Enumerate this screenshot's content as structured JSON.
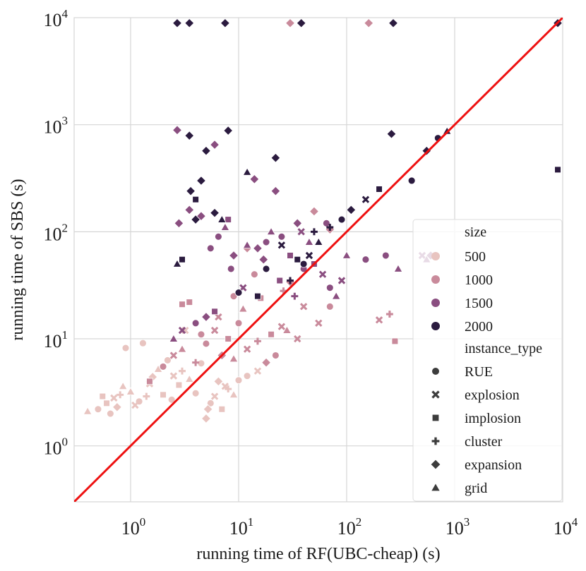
{
  "chart_data": {
    "type": "scatter",
    "xlabel": "running time of RF(UBC-cheap) (s)",
    "ylabel": "running time of SBS (s)",
    "xscale": "log",
    "yscale": "log",
    "xlim": [
      0.3,
      10000
    ],
    "ylim": [
      0.3,
      10000
    ],
    "grid": true,
    "x_ticks": [
      {
        "value": 1,
        "base": "10",
        "exp": "0"
      },
      {
        "value": 10,
        "base": "10",
        "exp": "1"
      },
      {
        "value": 100,
        "base": "10",
        "exp": "2"
      },
      {
        "value": 1000,
        "base": "10",
        "exp": "3"
      },
      {
        "value": 10000,
        "base": "10",
        "exp": "4"
      }
    ],
    "y_ticks": [
      {
        "value": 1,
        "base": "10",
        "exp": "0"
      },
      {
        "value": 10,
        "base": "10",
        "exp": "1"
      },
      {
        "value": 100,
        "base": "10",
        "exp": "2"
      },
      {
        "value": 1000,
        "base": "10",
        "exp": "3"
      },
      {
        "value": 10000,
        "base": "10",
        "exp": "4"
      }
    ],
    "reference_line": {
      "x": [
        0.3,
        10000
      ],
      "y": [
        0.3,
        10000
      ],
      "color": "#ee1111"
    },
    "legend": {
      "placement": "lower-right",
      "size_title": "size",
      "sizes": [
        {
          "label": "500",
          "color": "#e8c4c0"
        },
        {
          "label": "1000",
          "color": "#c98a9b"
        },
        {
          "label": "1500",
          "color": "#8a4e80"
        },
        {
          "label": "2000",
          "color": "#2b1b3f"
        }
      ],
      "type_title": "instance_type",
      "types": [
        {
          "label": "RUE",
          "marker": "circle"
        },
        {
          "label": "explosion",
          "marker": "x"
        },
        {
          "label": "implosion",
          "marker": "square"
        },
        {
          "label": "cluster",
          "marker": "plus"
        },
        {
          "label": "expansion",
          "marker": "diamond"
        },
        {
          "label": "grid",
          "marker": "triangle"
        }
      ],
      "marker_color": "#3c3c3c"
    },
    "series": [
      {
        "name": "500",
        "points": [
          [
            0.4,
            2.1,
            "triangle"
          ],
          [
            0.5,
            2.2,
            "circle"
          ],
          [
            0.6,
            2.5,
            "square"
          ],
          [
            0.7,
            2.8,
            "x"
          ],
          [
            0.8,
            3.0,
            "plus"
          ],
          [
            0.9,
            8.2,
            "circle"
          ],
          [
            1.0,
            3.2,
            "triangle"
          ],
          [
            0.75,
            2.3,
            "diamond"
          ],
          [
            1.2,
            2.6,
            "circle"
          ],
          [
            1.3,
            9.1,
            "circle"
          ],
          [
            1.5,
            3.8,
            "x"
          ],
          [
            1.8,
            5.2,
            "triangle"
          ],
          [
            2.0,
            3.0,
            "square"
          ],
          [
            2.2,
            6.3,
            "circle"
          ],
          [
            2.5,
            4.5,
            "x"
          ],
          [
            3.0,
            5.0,
            "plus"
          ],
          [
            3.5,
            4.2,
            "triangle"
          ],
          [
            4.0,
            3.1,
            "circle"
          ],
          [
            5.0,
            1.8,
            "diamond"
          ],
          [
            5.5,
            2.5,
            "circle"
          ],
          [
            6.0,
            2.9,
            "x"
          ],
          [
            7.0,
            2.2,
            "square"
          ],
          [
            8.0,
            3.4,
            "plus"
          ],
          [
            9.0,
            3.0,
            "triangle"
          ],
          [
            10.0,
            4.1,
            "circle"
          ],
          [
            0.55,
            2.9,
            "square"
          ],
          [
            0.65,
            2.0,
            "circle"
          ],
          [
            1.1,
            2.4,
            "x"
          ],
          [
            1.6,
            4.4,
            "diamond"
          ],
          [
            2.8,
            3.7,
            "square"
          ],
          [
            4.5,
            5.9,
            "circle"
          ],
          [
            6.5,
            4.0,
            "diamond"
          ],
          [
            12,
            4.5,
            "circle"
          ],
          [
            15,
            5.0,
            "x"
          ],
          [
            3.2,
            12.0,
            "x"
          ],
          [
            5.2,
            2.2,
            "diamond"
          ],
          [
            7.5,
            3.6,
            "x"
          ],
          [
            1.4,
            2.9,
            "plus"
          ],
          [
            2.4,
            2.7,
            "circle"
          ],
          [
            0.85,
            3.6,
            "triangle"
          ]
        ]
      },
      {
        "name": "1000",
        "points": [
          [
            1.5,
            4.0,
            "square"
          ],
          [
            2.0,
            5.5,
            "circle"
          ],
          [
            2.5,
            7.0,
            "x"
          ],
          [
            3.0,
            8.0,
            "triangle"
          ],
          [
            3.5,
            22,
            "square"
          ],
          [
            4.0,
            6.0,
            "plus"
          ],
          [
            5.0,
            9.0,
            "circle"
          ],
          [
            6.0,
            12,
            "x"
          ],
          [
            7.0,
            7.0,
            "diamond"
          ],
          [
            8.0,
            10,
            "square"
          ],
          [
            9.0,
            6.5,
            "triangle"
          ],
          [
            10,
            14,
            "circle"
          ],
          [
            12,
            8.0,
            "x"
          ],
          [
            15,
            9.5,
            "plus"
          ],
          [
            18,
            6.0,
            "diamond"
          ],
          [
            20,
            11,
            "square"
          ],
          [
            22,
            7.0,
            "circle"
          ],
          [
            25,
            13,
            "x"
          ],
          [
            28,
            12,
            "triangle"
          ],
          [
            30,
            8890,
            "diamond"
          ],
          [
            160,
            8890,
            "diamond"
          ],
          [
            30,
            34,
            "diamond"
          ],
          [
            40,
            20,
            "x"
          ],
          [
            55,
            14,
            "x"
          ],
          [
            70,
            20,
            "circle"
          ],
          [
            50,
            155,
            "diamond"
          ],
          [
            70,
            105,
            "diamond"
          ],
          [
            200,
            15,
            "x"
          ],
          [
            250,
            17,
            "plus"
          ],
          [
            280,
            9.5,
            "square"
          ],
          [
            3.0,
            21,
            "square"
          ],
          [
            12,
            70,
            "diamond"
          ],
          [
            9,
            25,
            "circle"
          ],
          [
            14,
            40,
            "circle"
          ],
          [
            35,
            10,
            "x"
          ],
          [
            4.5,
            11,
            "circle"
          ],
          [
            6.5,
            16,
            "x"
          ],
          [
            11,
            19,
            "triangle"
          ],
          [
            16,
            24,
            "square"
          ],
          [
            26,
            28,
            "plus"
          ]
        ]
      },
      {
        "name": "1500",
        "points": [
          [
            2.5,
            10,
            "triangle"
          ],
          [
            3.0,
            12,
            "x"
          ],
          [
            4.0,
            14,
            "circle"
          ],
          [
            5.0,
            16,
            "diamond"
          ],
          [
            6.0,
            18,
            "square"
          ],
          [
            2.8,
            120,
            "diamond"
          ],
          [
            3.5,
            160,
            "diamond"
          ],
          [
            4.5,
            140,
            "diamond"
          ],
          [
            5.5,
            70,
            "circle"
          ],
          [
            6.5,
            90,
            "circle"
          ],
          [
            7.5,
            110,
            "triangle"
          ],
          [
            8.0,
            130,
            "square"
          ],
          [
            9.0,
            60,
            "diamond"
          ],
          [
            12,
            75,
            "triangle"
          ],
          [
            15,
            70,
            "diamond"
          ],
          [
            18,
            80,
            "circle"
          ],
          [
            20,
            100,
            "triangle"
          ],
          [
            22,
            240,
            "diamond"
          ],
          [
            25,
            90,
            "circle"
          ],
          [
            30,
            60,
            "square"
          ],
          [
            35,
            120,
            "diamond"
          ],
          [
            40,
            45,
            "circle"
          ],
          [
            45,
            80,
            "triangle"
          ],
          [
            50,
            50,
            "square"
          ],
          [
            60,
            40,
            "x"
          ],
          [
            70,
            30,
            "circle"
          ],
          [
            80,
            25,
            "triangle"
          ],
          [
            90,
            35,
            "x"
          ],
          [
            100,
            60,
            "triangle"
          ],
          [
            150,
            55,
            "circle"
          ],
          [
            230,
            60,
            "circle"
          ],
          [
            300,
            45,
            "triangle"
          ],
          [
            500,
            60,
            "x"
          ],
          [
            550,
            55,
            "triangle"
          ],
          [
            600,
            60,
            "diamond"
          ],
          [
            2.7,
            890,
            "diamond"
          ],
          [
            6.0,
            650,
            "diamond"
          ],
          [
            14,
            310,
            "diamond"
          ],
          [
            38,
            100,
            "x"
          ],
          [
            65,
            120,
            "circle"
          ],
          [
            8.5,
            45,
            "circle"
          ],
          [
            11,
            30,
            "x"
          ],
          [
            17,
            55,
            "diamond"
          ],
          [
            24,
            35,
            "square"
          ],
          [
            33,
            25,
            "plus"
          ]
        ]
      },
      {
        "name": "2000",
        "points": [
          [
            2.7,
            8890,
            "diamond"
          ],
          [
            3.5,
            8890,
            "diamond"
          ],
          [
            7.5,
            8890,
            "diamond"
          ],
          [
            38,
            8890,
            "diamond"
          ],
          [
            270,
            8890,
            "diamond"
          ],
          [
            2.7,
            50,
            "triangle"
          ],
          [
            3.0,
            55,
            "square"
          ],
          [
            3.5,
            790,
            "diamond"
          ],
          [
            3.6,
            240,
            "diamond"
          ],
          [
            4.0,
            200,
            "square"
          ],
          [
            4.5,
            300,
            "diamond"
          ],
          [
            5.0,
            570,
            "diamond"
          ],
          [
            6.0,
            150,
            "diamond"
          ],
          [
            7.0,
            130,
            "triangle"
          ],
          [
            8.0,
            880,
            "diamond"
          ],
          [
            10,
            27,
            "circle"
          ],
          [
            12,
            360,
            "triangle"
          ],
          [
            15,
            25,
            "square"
          ],
          [
            18,
            45,
            "circle"
          ],
          [
            22,
            490,
            "diamond"
          ],
          [
            30,
            35,
            "plus"
          ],
          [
            35,
            55,
            "square"
          ],
          [
            40,
            50,
            "circle"
          ],
          [
            45,
            60,
            "x"
          ],
          [
            55,
            80,
            "triangle"
          ],
          [
            70,
            110,
            "plus"
          ],
          [
            90,
            130,
            "circle"
          ],
          [
            110,
            160,
            "diamond"
          ],
          [
            150,
            200,
            "x"
          ],
          [
            200,
            250,
            "square"
          ],
          [
            260,
            820,
            "diamond"
          ],
          [
            400,
            300,
            "circle"
          ],
          [
            550,
            570,
            "diamond"
          ],
          [
            700,
            750,
            "circle"
          ],
          [
            850,
            870,
            "triangle"
          ],
          [
            9000,
            8890,
            "diamond"
          ],
          [
            9000,
            380,
            "square"
          ],
          [
            4.0,
            130,
            "diamond"
          ],
          [
            25,
            75,
            "x"
          ],
          [
            50,
            100,
            "plus"
          ]
        ]
      }
    ]
  }
}
